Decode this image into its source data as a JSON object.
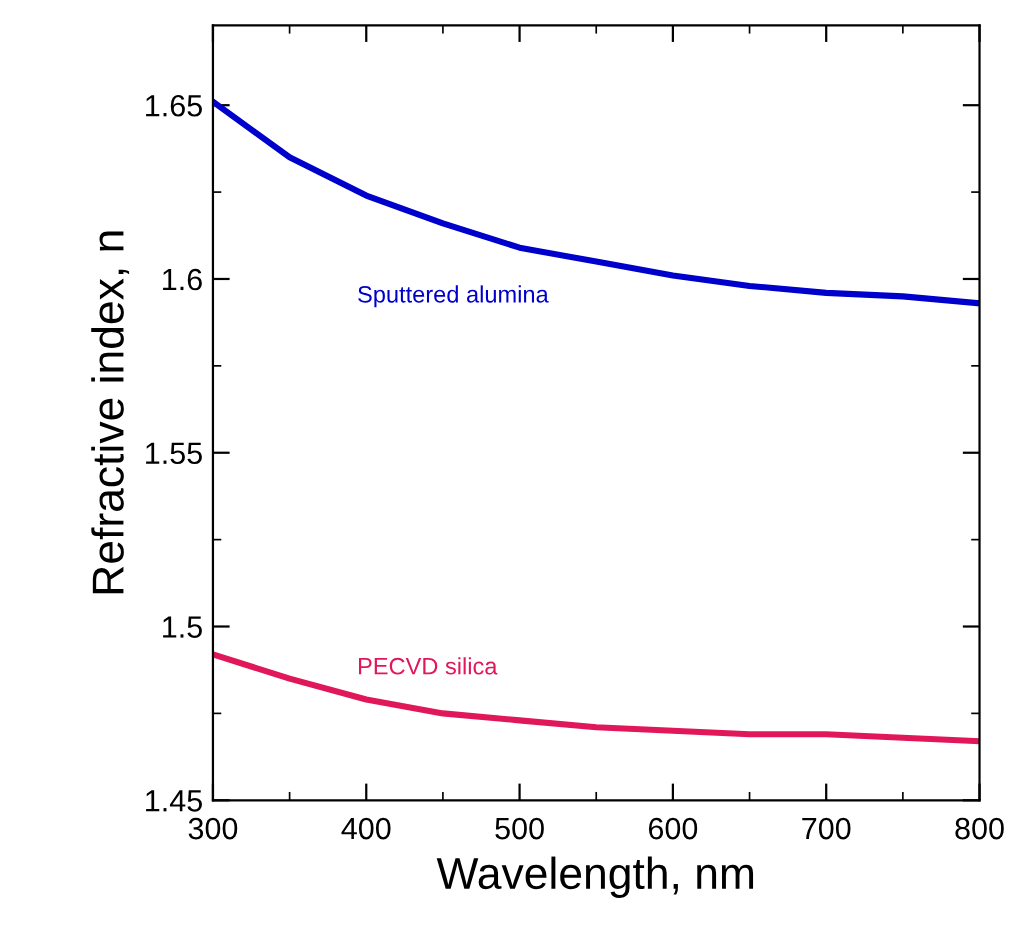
{
  "chart_data": {
    "type": "line",
    "xlabel": "Wavelength, nm",
    "ylabel": "Refractive index, n",
    "x": [
      300,
      350,
      400,
      450,
      500,
      550,
      600,
      650,
      700,
      750,
      800
    ],
    "series": [
      {
        "name": "Sputtered alumina",
        "color": "#0000cc",
        "values": [
          1.651,
          1.635,
          1.624,
          1.616,
          1.609,
          1.605,
          1.601,
          1.598,
          1.596,
          1.595,
          1.593
        ]
      },
      {
        "name": "PECVD silica",
        "color": "#e0185a",
        "values": [
          1.492,
          1.485,
          1.479,
          1.475,
          1.473,
          1.471,
          1.47,
          1.469,
          1.469,
          1.468,
          1.467
        ]
      }
    ],
    "xlim": [
      300,
      800
    ],
    "xticks": [
      300,
      400,
      500,
      600,
      700,
      800
    ],
    "ylim": [
      1.45,
      1.673
    ],
    "yticks": [
      {
        "value": 1.45,
        "label": "1.45"
      },
      {
        "value": 1.5,
        "label": "1.5"
      },
      {
        "value": 1.55,
        "label": "1.55"
      },
      {
        "value": 1.6,
        "label": "1.6"
      },
      {
        "value": 1.65,
        "label": "1.65"
      }
    ],
    "grid": false,
    "legend": false,
    "marker": "none",
    "line_style": "solid"
  }
}
